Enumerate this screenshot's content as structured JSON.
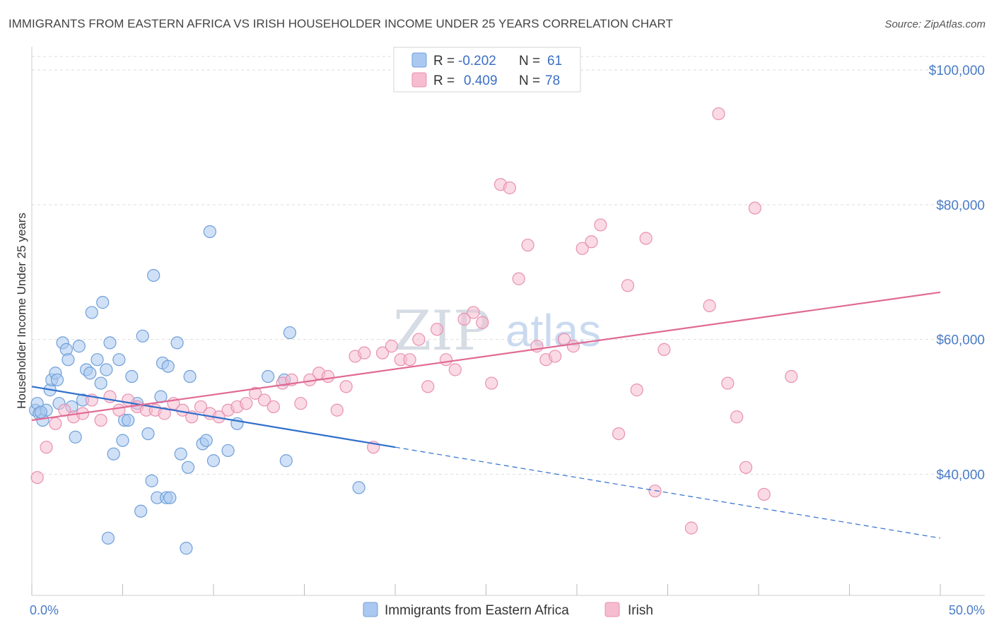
{
  "chart_data": {
    "type": "scatter",
    "title": "IMMIGRANTS FROM EASTERN AFRICA VS IRISH HOUSEHOLDER INCOME UNDER 25 YEARS CORRELATION CHART",
    "source": "Source: ZipAtlas.com",
    "ylabel": "Householder Income Under 25 years",
    "xlim": [
      0,
      50
    ],
    "ylim": [
      22000,
      102000
    ],
    "x_tick_labels": [
      "0.0%",
      "50.0%"
    ],
    "y_ticks": [
      {
        "value": 40000,
        "label": "$40,000"
      },
      {
        "value": 60000,
        "label": "$60,000"
      },
      {
        "value": 80000,
        "label": "$80,000"
      },
      {
        "value": 100000,
        "label": "$100,000"
      }
    ],
    "watermark": {
      "left": "ZIP",
      "right": "atlas"
    },
    "colors": {
      "blue_fill": "#aac8f0",
      "blue_stroke": "#6f9fd8",
      "blue_line": "#2f6fcb",
      "pink_fill": "#f6bcd0",
      "pink_stroke": "#e891b0",
      "pink_line": "#e06a93",
      "tick": "#4a7cc7",
      "grid": "#dddddd"
    },
    "legend": {
      "rows": [
        {
          "r_label": "R =",
          "r_value": "-0.202",
          "n_label": "N =",
          "n_value": "61"
        },
        {
          "r_label": "R =",
          "r_value": "0.409",
          "n_label": "N =",
          "n_value": "78"
        }
      ],
      "bottom": [
        "Immigrants from Eastern Africa",
        "Irish"
      ]
    },
    "series": [
      {
        "name": "Immigrants from Eastern Africa",
        "color": "blue",
        "trend": {
          "x0": 0,
          "y0": 53000,
          "x1": 20,
          "y1": 44000,
          "dash_to": 50,
          "dash_y": 30500
        },
        "points": [
          [
            0.2,
            49500
          ],
          [
            0.3,
            50500
          ],
          [
            0.4,
            49000
          ],
          [
            0.6,
            48000
          ],
          [
            0.8,
            49500
          ],
          [
            1.0,
            52500
          ],
          [
            1.1,
            54000
          ],
          [
            1.3,
            55000
          ],
          [
            1.4,
            54000
          ],
          [
            1.5,
            50500
          ],
          [
            1.7,
            59500
          ],
          [
            1.9,
            58500
          ],
          [
            2.0,
            57000
          ],
          [
            2.2,
            50000
          ],
          [
            2.4,
            45500
          ],
          [
            2.6,
            59000
          ],
          [
            2.8,
            51000
          ],
          [
            3.0,
            55500
          ],
          [
            3.2,
            55000
          ],
          [
            3.3,
            64000
          ],
          [
            3.6,
            57000
          ],
          [
            3.8,
            53500
          ],
          [
            3.9,
            65500
          ],
          [
            4.1,
            55500
          ],
          [
            4.2,
            30500
          ],
          [
            4.3,
            59500
          ],
          [
            4.5,
            43000
          ],
          [
            4.8,
            57000
          ],
          [
            5.0,
            45000
          ],
          [
            5.1,
            48000
          ],
          [
            5.3,
            48000
          ],
          [
            5.5,
            54500
          ],
          [
            5.8,
            50500
          ],
          [
            6.0,
            34500
          ],
          [
            6.1,
            60500
          ],
          [
            6.4,
            46000
          ],
          [
            6.6,
            39000
          ],
          [
            6.7,
            69500
          ],
          [
            6.9,
            36500
          ],
          [
            7.1,
            51500
          ],
          [
            7.2,
            56500
          ],
          [
            7.4,
            36500
          ],
          [
            7.5,
            56000
          ],
          [
            7.6,
            36500
          ],
          [
            8.0,
            59500
          ],
          [
            8.2,
            43000
          ],
          [
            8.5,
            29000
          ],
          [
            8.6,
            41000
          ],
          [
            8.7,
            54500
          ],
          [
            9.4,
            44500
          ],
          [
            9.6,
            45000
          ],
          [
            9.8,
            76000
          ],
          [
            10.0,
            42000
          ],
          [
            10.8,
            43500
          ],
          [
            11.3,
            47500
          ],
          [
            13.0,
            54500
          ],
          [
            13.9,
            54000
          ],
          [
            14.0,
            42000
          ],
          [
            14.2,
            61000
          ],
          [
            18.0,
            38000
          ],
          [
            0.5,
            49200
          ]
        ]
      },
      {
        "name": "Irish",
        "color": "pink",
        "trend": {
          "x0": 0,
          "y0": 48000,
          "x1": 50,
          "y1": 67000
        },
        "points": [
          [
            0.3,
            39500
          ],
          [
            0.8,
            44000
          ],
          [
            1.3,
            47500
          ],
          [
            1.8,
            49500
          ],
          [
            2.3,
            48500
          ],
          [
            2.8,
            49000
          ],
          [
            3.3,
            51000
          ],
          [
            3.8,
            48000
          ],
          [
            4.3,
            51500
          ],
          [
            4.8,
            49500
          ],
          [
            5.3,
            51000
          ],
          [
            5.8,
            50000
          ],
          [
            6.3,
            49500
          ],
          [
            6.8,
            49500
          ],
          [
            7.3,
            49000
          ],
          [
            7.8,
            50500
          ],
          [
            8.3,
            49500
          ],
          [
            8.8,
            48500
          ],
          [
            9.3,
            50000
          ],
          [
            9.8,
            49000
          ],
          [
            10.3,
            48500
          ],
          [
            10.8,
            49500
          ],
          [
            11.3,
            50000
          ],
          [
            11.8,
            50500
          ],
          [
            12.3,
            52000
          ],
          [
            12.8,
            51000
          ],
          [
            13.3,
            50000
          ],
          [
            13.8,
            53500
          ],
          [
            14.3,
            54000
          ],
          [
            14.8,
            50500
          ],
          [
            15.3,
            54000
          ],
          [
            15.8,
            55000
          ],
          [
            16.3,
            54500
          ],
          [
            16.8,
            49500
          ],
          [
            17.3,
            53000
          ],
          [
            17.8,
            57500
          ],
          [
            18.3,
            58000
          ],
          [
            18.8,
            44000
          ],
          [
            19.3,
            58000
          ],
          [
            19.8,
            59000
          ],
          [
            20.3,
            57000
          ],
          [
            20.8,
            57000
          ],
          [
            21.3,
            60000
          ],
          [
            21.8,
            53000
          ],
          [
            22.3,
            61500
          ],
          [
            22.8,
            57000
          ],
          [
            23.3,
            55500
          ],
          [
            23.8,
            63000
          ],
          [
            24.3,
            64000
          ],
          [
            24.8,
            62500
          ],
          [
            25.3,
            53500
          ],
          [
            25.8,
            83000
          ],
          [
            26.3,
            82500
          ],
          [
            26.8,
            69000
          ],
          [
            27.3,
            74000
          ],
          [
            27.8,
            59000
          ],
          [
            28.3,
            57000
          ],
          [
            28.8,
            57500
          ],
          [
            29.3,
            60000
          ],
          [
            29.8,
            59000
          ],
          [
            30.3,
            73500
          ],
          [
            30.8,
            74500
          ],
          [
            31.3,
            77000
          ],
          [
            32.3,
            46000
          ],
          [
            32.8,
            68000
          ],
          [
            33.3,
            52500
          ],
          [
            33.8,
            75000
          ],
          [
            34.3,
            37500
          ],
          [
            34.8,
            58500
          ],
          [
            36.3,
            32000
          ],
          [
            37.3,
            65000
          ],
          [
            37.8,
            93500
          ],
          [
            38.3,
            53500
          ],
          [
            38.8,
            48500
          ],
          [
            39.3,
            41000
          ],
          [
            39.8,
            79500
          ],
          [
            40.3,
            37000
          ],
          [
            41.8,
            54500
          ]
        ]
      }
    ]
  }
}
